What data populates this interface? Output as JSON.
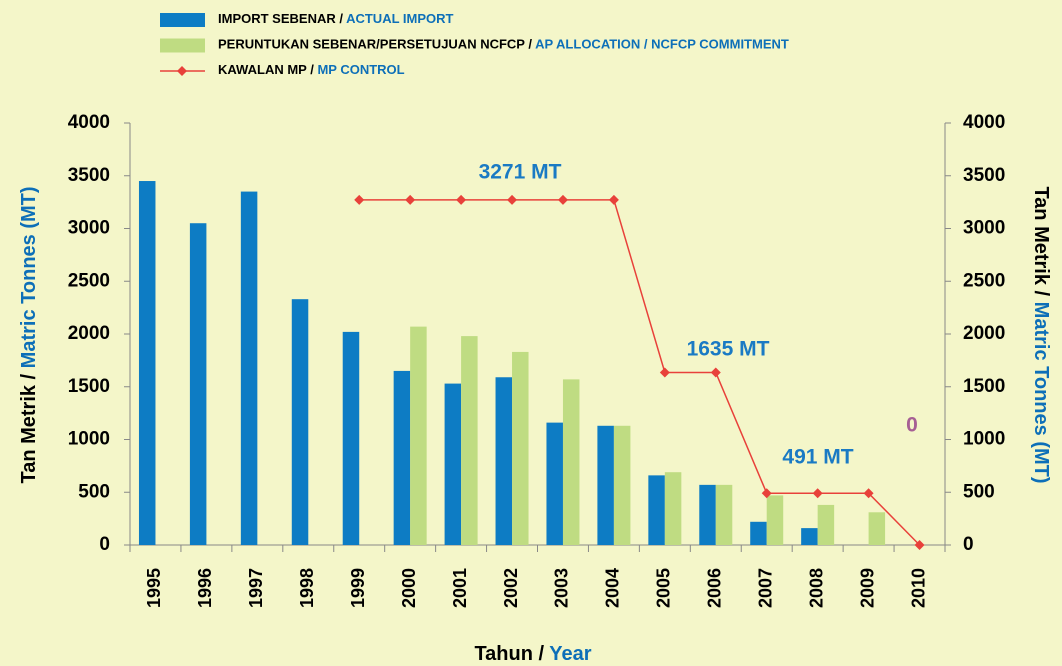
{
  "chart_data": {
    "type": "bar_line",
    "categories": [
      "1995",
      "1996",
      "1997",
      "1998",
      "1999",
      "2000",
      "2001",
      "2002",
      "2003",
      "2004",
      "2005",
      "2006",
      "2007",
      "2008",
      "2009",
      "2010"
    ],
    "series": [
      {
        "name": "IMPORT SEBENAR / ACTUAL IMPORT",
        "type": "bar",
        "color": "#0d7cc4",
        "values": [
          3450,
          3050,
          3350,
          2330,
          2020,
          1650,
          1530,
          1590,
          1160,
          1130,
          660,
          570,
          220,
          160,
          null,
          null
        ]
      },
      {
        "name": "PERUNTUKAN SEBENAR/PERSETUJUAN NCFCP / AP ALLOCATION / NCFCP COMMITMENT",
        "type": "bar",
        "color": "#bfdc82",
        "values": [
          null,
          null,
          null,
          null,
          null,
          2070,
          1980,
          1830,
          1570,
          1130,
          690,
          570,
          470,
          380,
          310,
          null
        ]
      },
      {
        "name": "KAWALAN MP / MP CONTROL",
        "type": "line",
        "color": "#e8413a",
        "values": [
          null,
          null,
          null,
          null,
          3271,
          3271,
          3271,
          3271,
          3271,
          3271,
          1635,
          1635,
          491,
          491,
          491,
          0
        ]
      }
    ],
    "annotations": [
      "3271 MT",
      "1635 MT",
      "491 MT",
      "0"
    ],
    "ylim": [
      0,
      4000
    ],
    "yticks": [
      0,
      500,
      1000,
      1500,
      2000,
      2500,
      3000,
      3500,
      4000
    ],
    "y2lim": [
      0,
      4000
    ],
    "y2ticks": [
      0,
      500,
      1000,
      1500,
      2000,
      2500,
      3000,
      3500,
      4000
    ],
    "y_label": "Tan Metrik / Matric Tonnes (MT)",
    "y2_label": "Tan Metrik / Matric Tonnes (MT)",
    "x_label": "Tahun / Year"
  }
}
